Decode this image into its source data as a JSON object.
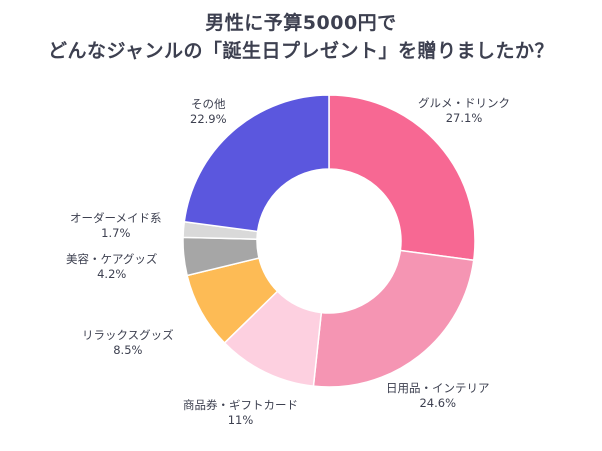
{
  "chart_data": {
    "type": "pie",
    "donut": true,
    "title": [
      "男性に予算5000円で",
      "どんなジャンルの「誕生日プレゼント」を贈りましたか？"
    ],
    "slices": [
      {
        "label": "グルメ・ドリンク",
        "value": 27.1,
        "display": "27.1%",
        "color": "#f76893"
      },
      {
        "label": "日用品・インテリア",
        "value": 24.6,
        "display": "24.6%",
        "color": "#f595b3"
      },
      {
        "label": "商品券・ギフトカード",
        "value": 11,
        "display": "11%",
        "color": "#fdd0e0"
      },
      {
        "label": "リラックスグッズ",
        "value": 8.5,
        "display": "8.5%",
        "color": "#fdbb55"
      },
      {
        "label": "美容・ケアグッズ",
        "value": 4.2,
        "display": "4.2%",
        "color": "#a6a6a6"
      },
      {
        "label": "オーダーメイド系",
        "value": 1.7,
        "display": "1.7%",
        "color": "#d9d9d9"
      },
      {
        "label": "その他",
        "value": 22.9,
        "display": "22.9%",
        "color": "#5b57de"
      }
    ]
  }
}
